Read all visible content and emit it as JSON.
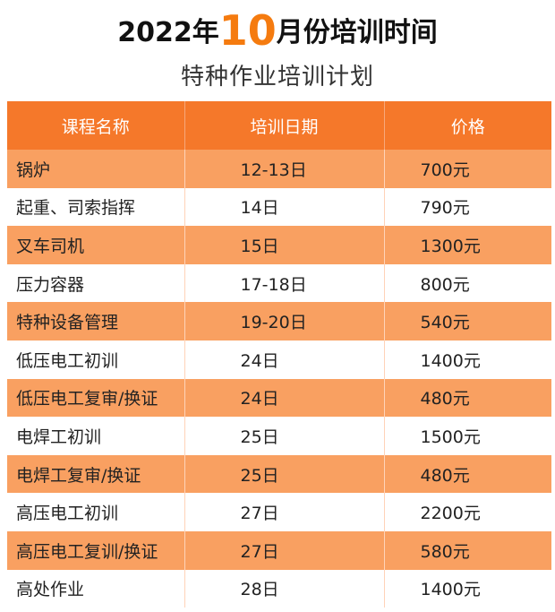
{
  "title": {
    "prefix": "2022年",
    "highlight": "10",
    "suffix": "月份培训时间",
    "prefix_color": "#111111",
    "highlight_color": "#f57b0f"
  },
  "subtitle": "特种作业培训计划",
  "table": {
    "header_color": "#f5782a",
    "shaded_row_color": "#f9a061",
    "headers": [
      "课程名称",
      "培训日期",
      "价格"
    ],
    "rows": [
      {
        "name": "锅炉",
        "date": "12-13日",
        "price": "700元"
      },
      {
        "name": "起重、司索指挥",
        "date": "14日",
        "price": "790元"
      },
      {
        "name": "叉车司机",
        "date": "15日",
        "price": "1300元"
      },
      {
        "name": "压力容器",
        "date": "17-18日",
        "price": "800元"
      },
      {
        "name": "特种设备管理",
        "date": "19-20日",
        "price": "540元"
      },
      {
        "name": "低压电工初训",
        "date": "24日",
        "price": "1400元"
      },
      {
        "name": "低压电工复审/换证",
        "date": "24日",
        "price": "480元"
      },
      {
        "name": "电焊工初训",
        "date": "25日",
        "price": "1500元"
      },
      {
        "name": "电焊工复审/换证",
        "date": "25日",
        "price": "480元"
      },
      {
        "name": "高压电工初训",
        "date": "27日",
        "price": "2200元"
      },
      {
        "name": "高压电工复训/换证",
        "date": "27日",
        "price": "580元"
      },
      {
        "name": "高处作业",
        "date": "28日",
        "price": "1400元"
      }
    ]
  }
}
